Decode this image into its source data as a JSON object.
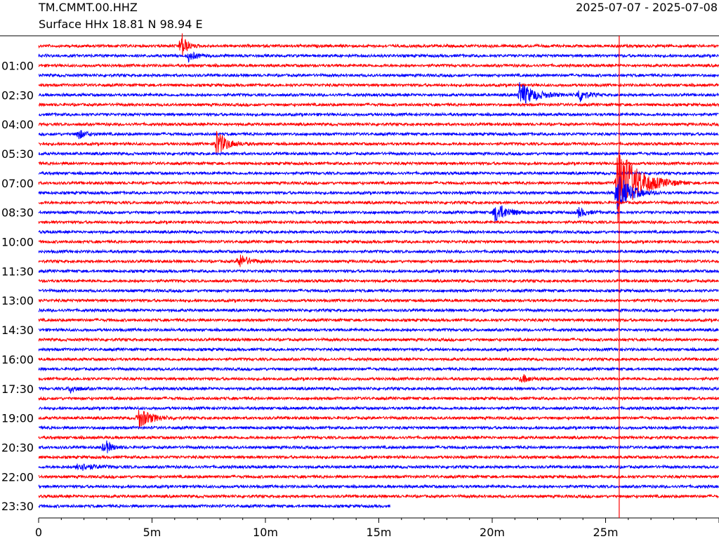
{
  "header": {
    "station": "TM.CMMT.00.HHZ",
    "channel_line": "Surface HHx  18.81 N 98.94 E",
    "date_range": "2025-07-07 - 2025-07-08"
  },
  "colors": {
    "trace_a": "#ff0000",
    "trace_b": "#0000ff",
    "axis": "#000000"
  },
  "chart_data": {
    "type": "line",
    "description_type": "helicorder",
    "rows": 48,
    "minutes_per_row": 30,
    "x_range_minutes": [
      0,
      30
    ],
    "x_ticks": [
      {
        "value": 0,
        "label": "0"
      },
      {
        "value": 5,
        "label": "5m"
      },
      {
        "value": 10,
        "label": "10m"
      },
      {
        "value": 15,
        "label": "15m"
      },
      {
        "value": 20,
        "label": "20m"
      },
      {
        "value": 25,
        "label": "25m"
      }
    ],
    "y_labels": [
      {
        "row": 2,
        "label": "01:00"
      },
      {
        "row": 5,
        "label": "02:30"
      },
      {
        "row": 8,
        "label": "04:00"
      },
      {
        "row": 11,
        "label": "05:30"
      },
      {
        "row": 14,
        "label": "07:00"
      },
      {
        "row": 17,
        "label": "08:30"
      },
      {
        "row": 20,
        "label": "10:00"
      },
      {
        "row": 23,
        "label": "11:30"
      },
      {
        "row": 26,
        "label": "13:00"
      },
      {
        "row": 29,
        "label": "14:30"
      },
      {
        "row": 32,
        "label": "16:00"
      },
      {
        "row": 35,
        "label": "17:30"
      },
      {
        "row": 38,
        "label": "19:00"
      },
      {
        "row": 41,
        "label": "20:30"
      },
      {
        "row": 44,
        "label": "22:00"
      },
      {
        "row": 47,
        "label": "23:30"
      }
    ],
    "last_row_end_minute": 15.5,
    "events": [
      {
        "row": 0,
        "minute": 6.3,
        "amp": 3.5,
        "dur": 0.4
      },
      {
        "row": 1,
        "minute": 6.6,
        "amp": 1.2,
        "dur": 0.6
      },
      {
        "row": 5,
        "minute": 21.2,
        "amp": 3.0,
        "dur": 1.2
      },
      {
        "row": 5,
        "minute": 23.8,
        "amp": 2.0,
        "dur": 0.6
      },
      {
        "row": 9,
        "minute": 1.7,
        "amp": 1.3,
        "dur": 0.6
      },
      {
        "row": 10,
        "minute": 7.8,
        "amp": 3.5,
        "dur": 0.8
      },
      {
        "row": 14,
        "minute": 25.5,
        "amp": 10,
        "dur": 1.6
      },
      {
        "row": 15,
        "minute": 25.5,
        "amp": 5,
        "dur": 1.0
      },
      {
        "row": 17,
        "minute": 20.1,
        "amp": 2.5,
        "dur": 1.0
      },
      {
        "row": 17,
        "minute": 23.8,
        "amp": 1.2,
        "dur": 0.6
      },
      {
        "row": 22,
        "minute": 8.8,
        "amp": 1.8,
        "dur": 0.8
      },
      {
        "row": 34,
        "minute": 21.3,
        "amp": 0.9,
        "dur": 0.7
      },
      {
        "row": 35,
        "minute": 1.4,
        "amp": 1.0,
        "dur": 0.5
      },
      {
        "row": 38,
        "minute": 4.4,
        "amp": 2.5,
        "dur": 1.0
      },
      {
        "row": 41,
        "minute": 2.9,
        "amp": 2.0,
        "dur": 0.5
      },
      {
        "row": 43,
        "minute": 1.7,
        "amp": 1.0,
        "dur": 1.2
      }
    ],
    "marker_line_minute": 25.6
  }
}
